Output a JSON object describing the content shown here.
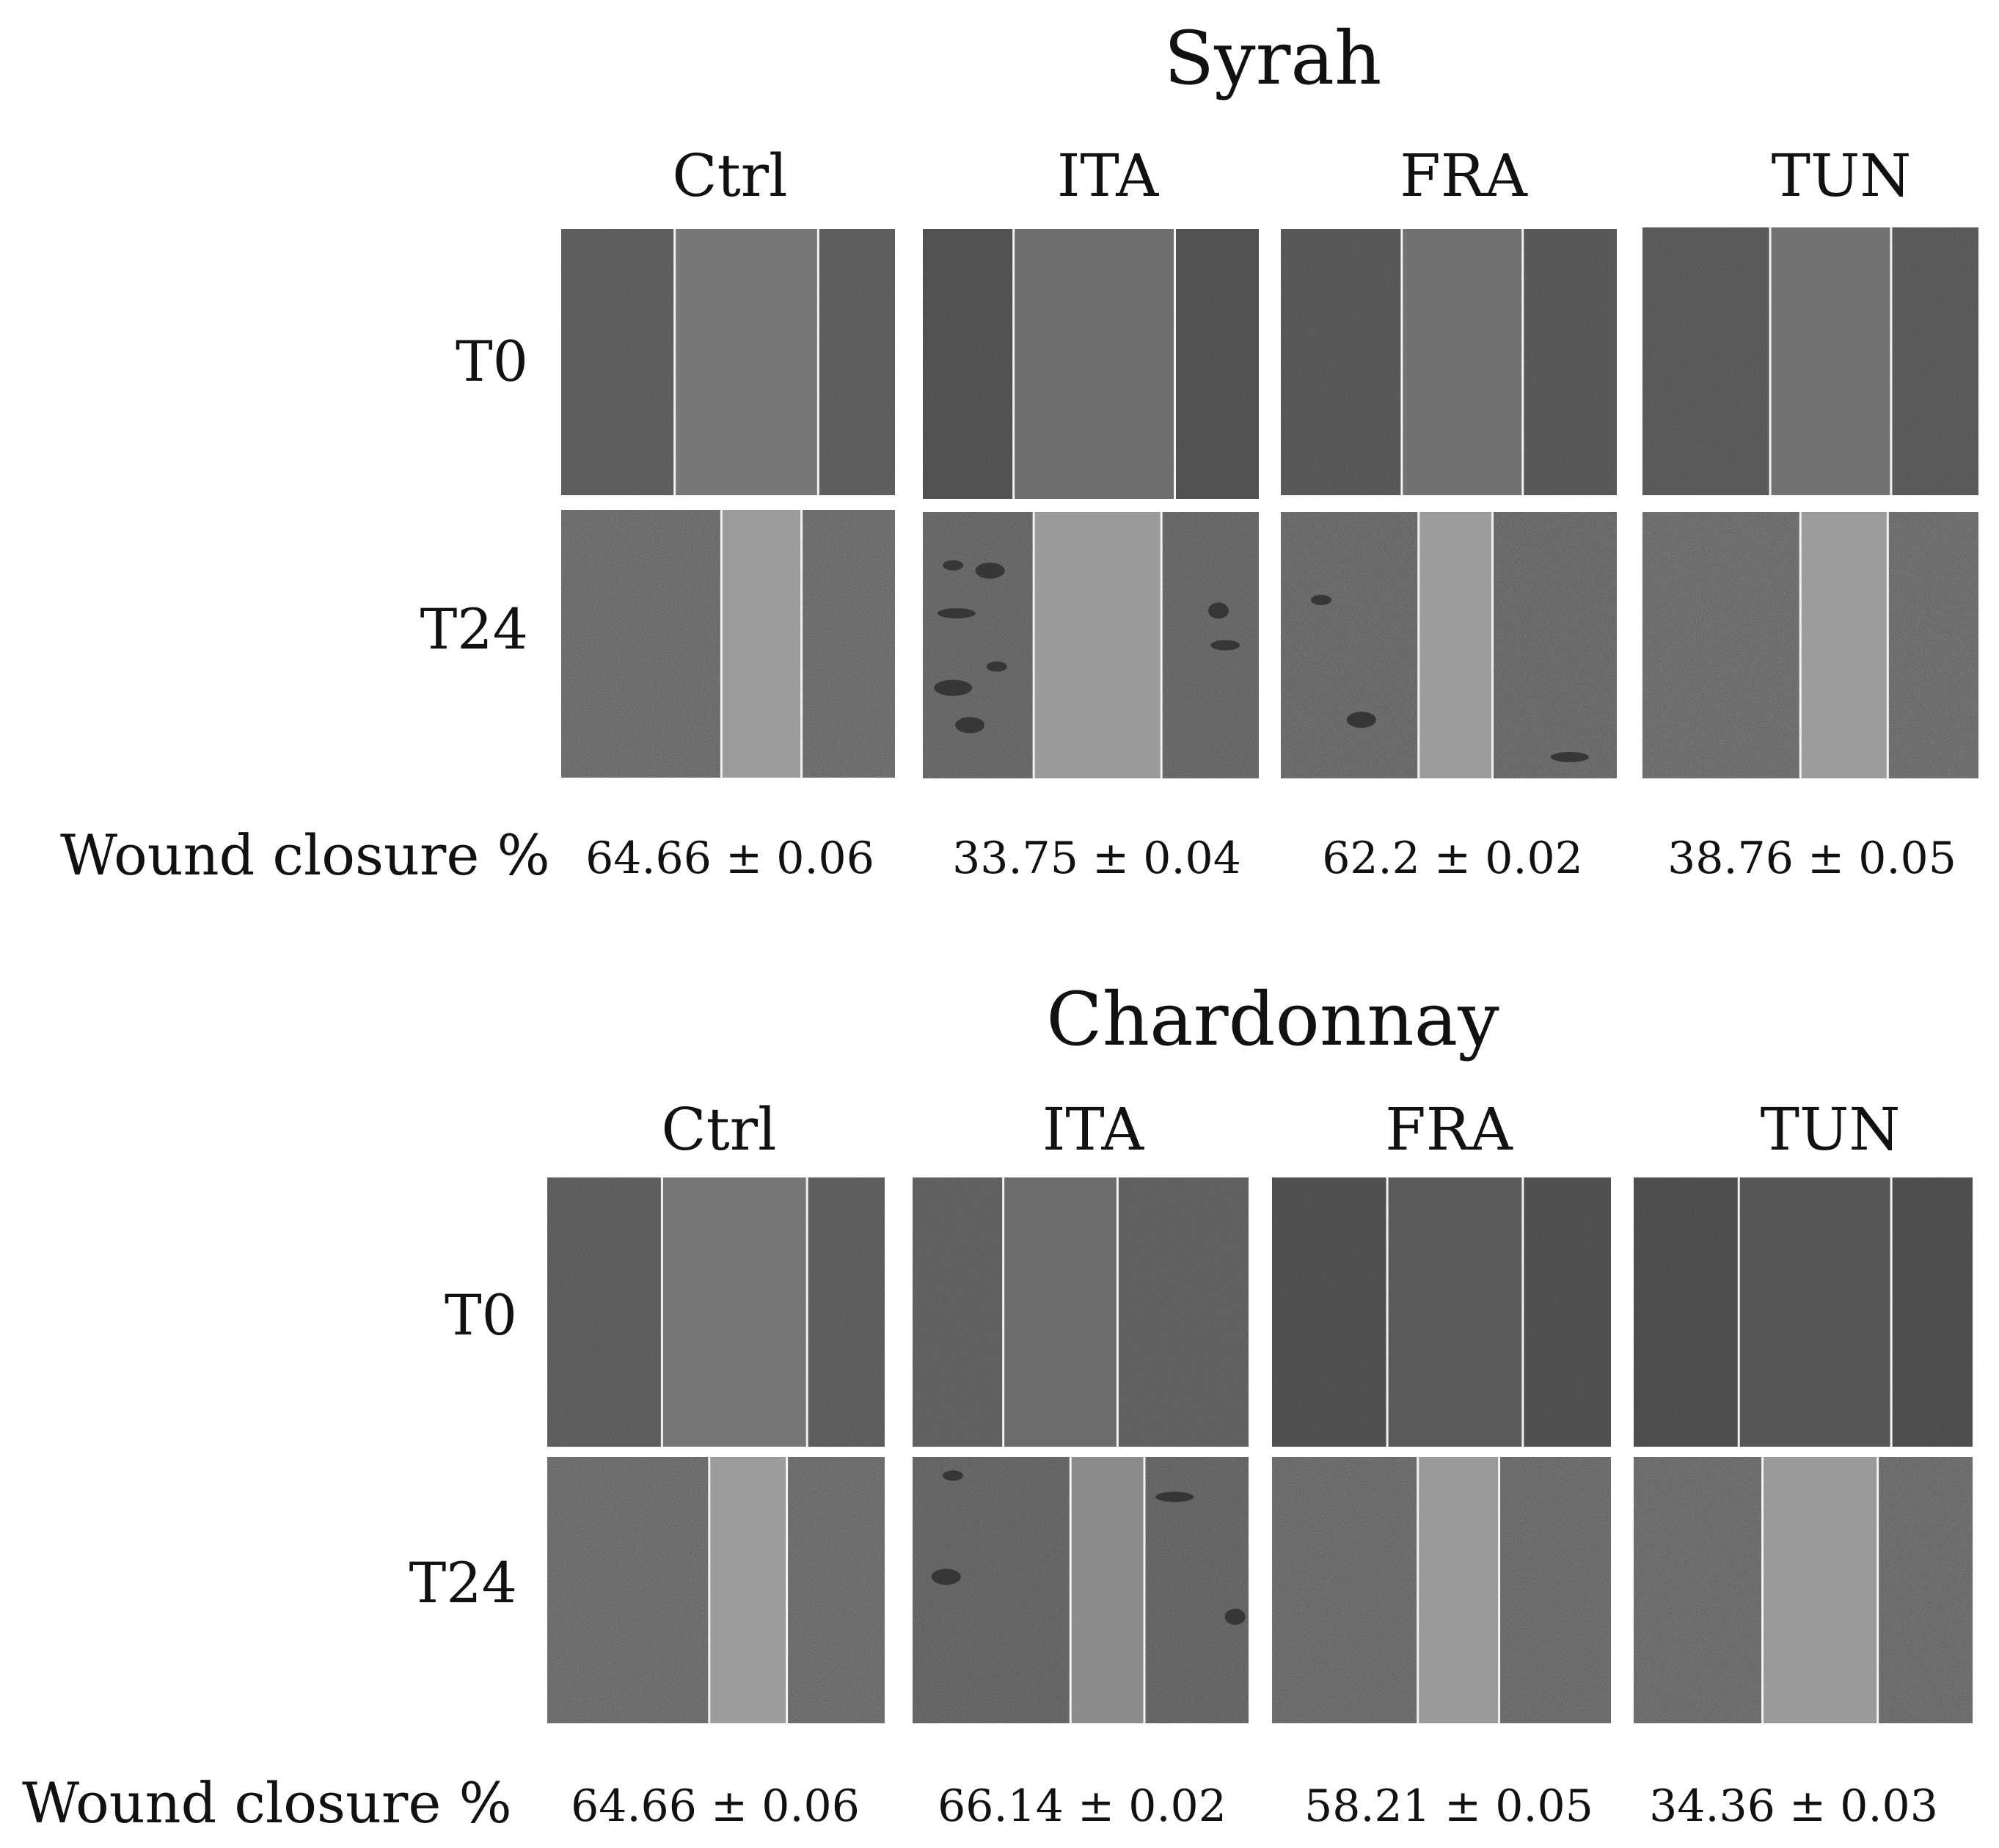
{
  "panels": [
    {
      "title": "Syrah",
      "columns": [
        "Ctrl",
        "ITA",
        "FRA",
        "TUN"
      ],
      "rows": [
        "T0",
        "T24"
      ],
      "closure_label": "Wound closure %",
      "closure_values": [
        "64.66 ± 0.06",
        "33.75 ± 0.04",
        "62.2 ± 0.02",
        "38.76 ± 0.05"
      ],
      "images": [
        [
          {
            "cell": "#6f6f6f",
            "gap": "#777777",
            "left": 0.34,
            "right": 0.77,
            "blobs": []
          },
          {
            "cell": "#606060",
            "gap": "#6e6e6e",
            "left": 0.27,
            "right": 0.75,
            "blobs": []
          },
          {
            "cell": "#686868",
            "gap": "#717171",
            "left": 0.36,
            "right": 0.72,
            "blobs": []
          },
          {
            "cell": "#6a6a6a",
            "gap": "#727272",
            "left": 0.38,
            "right": 0.74,
            "blobs": []
          }
        ],
        [
          {
            "cell": "#8e8e8e",
            "gap": "#9b9b9b",
            "left": 0.48,
            "right": 0.72,
            "blobs": []
          },
          {
            "cell": "#868686",
            "gap": "#9a9a9a",
            "left": 0.33,
            "right": 0.71,
            "blobs": [
              [
                0.09,
                0.2
              ],
              [
                0.2,
                0.22
              ],
              [
                0.1,
                0.38
              ],
              [
                0.88,
                0.37
              ],
              [
                0.9,
                0.5
              ],
              [
                0.09,
                0.66
              ],
              [
                0.22,
                0.58
              ],
              [
                0.14,
                0.8
              ]
            ]
          },
          {
            "cell": "#8a8a8a",
            "gap": "#9b9b9b",
            "left": 0.41,
            "right": 0.63,
            "blobs": [
              [
                0.12,
                0.33
              ],
              [
                0.24,
                0.78
              ],
              [
                0.86,
                0.92
              ]
            ]
          },
          {
            "cell": "#8f8f8f",
            "gap": "#9c9c9c",
            "left": 0.47,
            "right": 0.73,
            "blobs": []
          }
        ]
      ]
    },
    {
      "title": "Chardonnay",
      "columns": [
        "Ctrl",
        "ITA",
        "FRA",
        "TUN"
      ],
      "rows": [
        "T0",
        "T24"
      ],
      "closure_label": "Wound closure %",
      "closure_values": [
        "64.66 ± 0.06",
        "66.14 ± 0.02",
        "58.21 ± 0.05",
        "34.36 ± 0.03"
      ],
      "images": [
        [
          {
            "cell": "#6e6e6e",
            "gap": "#777777",
            "left": 0.34,
            "right": 0.77,
            "blobs": []
          },
          {
            "cell": "#727272",
            "gap": "#6c6c6c",
            "left": 0.27,
            "right": 0.61,
            "blobs": []
          },
          {
            "cell": "#5e5e5e",
            "gap": "#5a5a5a",
            "left": 0.34,
            "right": 0.74,
            "blobs": []
          },
          {
            "cell": "#5c5c5c",
            "gap": "#575757",
            "left": 0.31,
            "right": 0.76,
            "blobs": []
          }
        ],
        [
          {
            "cell": "#8e8e8e",
            "gap": "#9c9c9c",
            "left": 0.48,
            "right": 0.71,
            "blobs": []
          },
          {
            "cell": "#838383",
            "gap": "#8c8c8c",
            "left": 0.47,
            "right": 0.69,
            "blobs": [
              [
                0.12,
                0.07
              ],
              [
                0.1,
                0.45
              ],
              [
                0.78,
                0.15
              ],
              [
                0.96,
                0.6
              ]
            ]
          },
          {
            "cell": "#8c8c8c",
            "gap": "#9a9a9a",
            "left": 0.43,
            "right": 0.67,
            "blobs": []
          },
          {
            "cell": "#8d8d8d",
            "gap": "#9a9a9a",
            "left": 0.38,
            "right": 0.72,
            "blobs": []
          }
        ]
      ]
    }
  ]
}
